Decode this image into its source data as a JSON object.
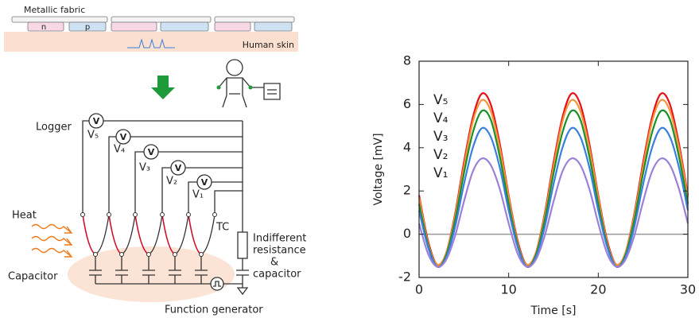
{
  "diagram": {
    "fabric": "Metallic fabric",
    "n": "n",
    "p": "p",
    "skin": "Human skin",
    "logger": "Logger",
    "meter": "V",
    "meters": [
      "V₅",
      "V₄",
      "V₃",
      "V₂",
      "V₁"
    ],
    "heat": "Heat",
    "capacitor": "Capacitor",
    "tc": "TC",
    "resistance": [
      "Indifferent",
      "resistance",
      "&",
      "capacitor"
    ],
    "generator": "Function generator"
  },
  "chart_data": {
    "type": "line",
    "x_label": "Time [s]",
    "y_label": "Voltage [mV]",
    "xlim": [
      0,
      30
    ],
    "ylim": [
      -2,
      8
    ],
    "xticks": [
      0,
      10,
      20,
      30
    ],
    "yticks": [
      -2,
      0,
      2,
      4,
      6,
      8
    ],
    "reference_line": 0,
    "x": [
      0,
      1,
      2,
      3,
      4,
      5,
      6,
      7,
      8,
      9,
      10,
      11,
      12,
      13,
      14,
      15,
      16,
      17,
      18,
      19,
      20,
      21,
      22,
      23,
      24,
      25,
      26,
      27,
      28,
      29,
      30
    ],
    "series": [
      {
        "name": "V₅",
        "color": "#e8101a",
        "values": [
          1.8,
          -0.3,
          -1.4,
          -0.9,
          0.9,
          3.3,
          5.4,
          6.5,
          6.0,
          4.2,
          1.8,
          -0.3,
          -1.4,
          -0.9,
          0.9,
          3.3,
          5.4,
          6.5,
          6.0,
          4.2,
          1.8,
          -0.3,
          -1.4,
          -0.9,
          0.9,
          3.3,
          5.4,
          6.5,
          6.0,
          4.2,
          1.8
        ]
      },
      {
        "name": "V₄",
        "color": "#f5963a",
        "values": [
          1.7,
          -0.4,
          -1.4,
          -0.9,
          0.8,
          3.1,
          5.2,
          6.2,
          5.7,
          4.0,
          1.7,
          -0.4,
          -1.4,
          -0.9,
          0.8,
          3.1,
          5.2,
          6.2,
          5.7,
          4.0,
          1.7,
          -0.4,
          -1.4,
          -0.9,
          0.8,
          3.1,
          5.2,
          6.2,
          5.7,
          4.0,
          1.7
        ]
      },
      {
        "name": "V₃",
        "color": "#1a8f2a",
        "values": [
          1.4,
          -0.5,
          -1.5,
          -1.0,
          0.6,
          2.8,
          4.7,
          5.7,
          5.3,
          3.6,
          1.4,
          -0.5,
          -1.5,
          -1.0,
          0.6,
          2.8,
          4.7,
          5.7,
          5.3,
          3.6,
          1.4,
          -0.5,
          -1.5,
          -1.0,
          0.6,
          2.8,
          4.7,
          5.7,
          5.3,
          3.6,
          1.4
        ]
      },
      {
        "name": "V₂",
        "color": "#3a7fe0",
        "values": [
          1.1,
          -0.6,
          -1.5,
          -1.1,
          0.3,
          2.3,
          4.0,
          4.9,
          4.5,
          3.1,
          1.1,
          -0.6,
          -1.5,
          -1.1,
          0.3,
          2.3,
          4.0,
          4.9,
          4.5,
          3.1,
          1.1,
          -0.6,
          -1.5,
          -1.1,
          0.3,
          2.3,
          4.0,
          4.9,
          4.5,
          3.1,
          1.1
        ]
      },
      {
        "name": "V₁",
        "color": "#9a80d8",
        "values": [
          0.5,
          -0.9,
          -1.5,
          -1.2,
          -0.1,
          1.5,
          2.9,
          3.5,
          3.2,
          2.1,
          0.5,
          -0.9,
          -1.5,
          -1.2,
          -0.1,
          1.5,
          2.9,
          3.5,
          3.2,
          2.1,
          0.5,
          -0.9,
          -1.5,
          -1.2,
          -0.1,
          1.5,
          2.9,
          3.5,
          3.2,
          2.1,
          0.5
        ]
      }
    ]
  }
}
